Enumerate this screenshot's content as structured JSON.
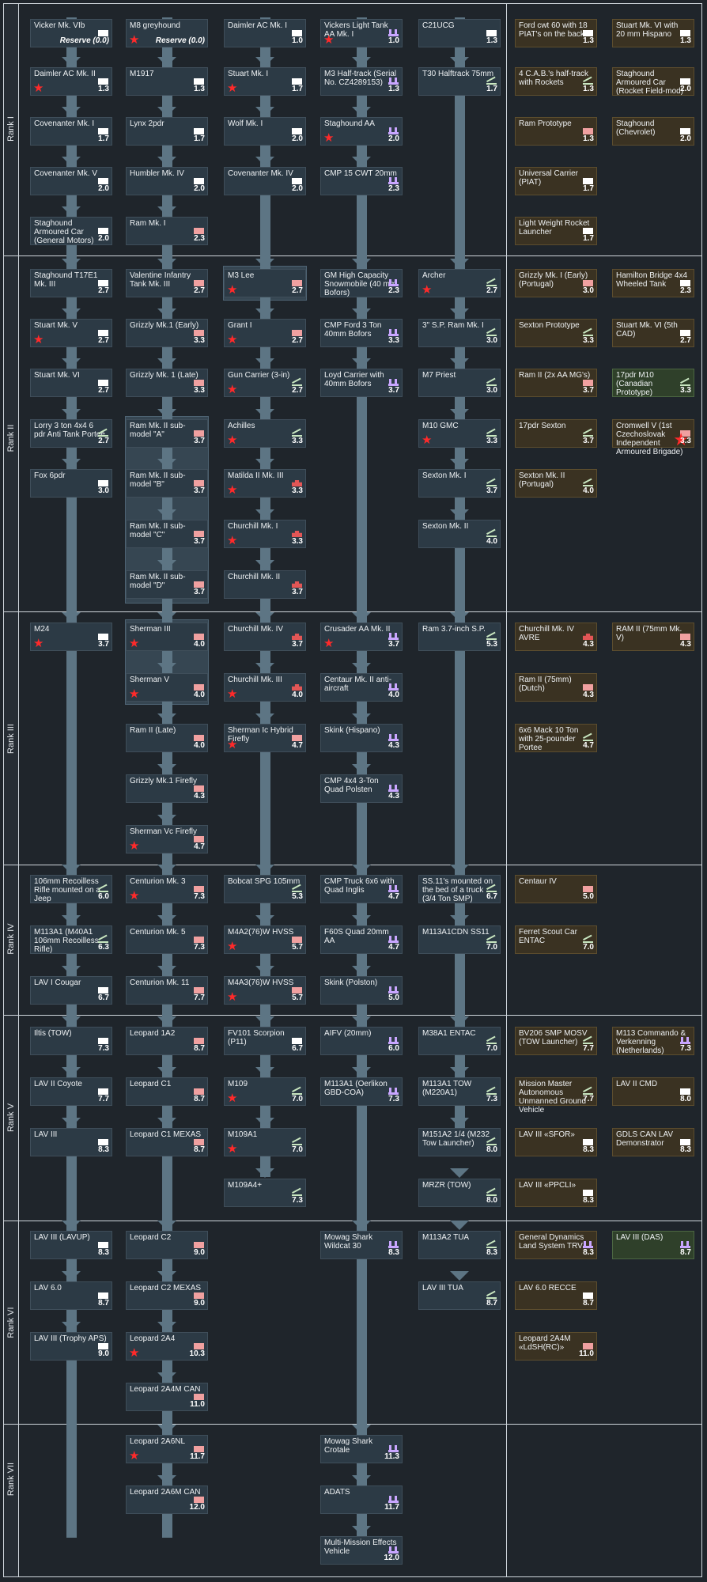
{
  "ranks": [
    {
      "label": "Rank I"
    },
    {
      "label": "Rank II"
    },
    {
      "label": "Rank III"
    },
    {
      "label": "Rank IV"
    },
    {
      "label": "Rank V"
    },
    {
      "label": "Rank VI"
    },
    {
      "label": "Rank VII"
    }
  ],
  "icon_colors": {
    "light": "#ffffff",
    "medium": "#f0a0a0",
    "heavy": "#e25656",
    "spg": "#c8e6c0",
    "aa": "#c9a6ff"
  },
  "vehicles": [
    {
      "name": "Vicker Mk. VIb",
      "br": "Reserve (0.0)",
      "icon": "light",
      "star": false,
      "type": "tech"
    },
    {
      "name": "M8 greyhound",
      "br": "Reserve (0.0)",
      "icon": "",
      "star": true,
      "type": "tech"
    },
    {
      "name": "Daimler AC Mk. I",
      "br": "1.0",
      "icon": "light",
      "star": false,
      "type": "tech"
    },
    {
      "name": "Vickers Light Tank AA Mk. I",
      "br": "1.0",
      "icon": "aa",
      "star": true,
      "type": "tech"
    },
    {
      "name": "C21UCG",
      "br": "1.3",
      "icon": "light",
      "star": false,
      "type": "tech"
    },
    {
      "name": "Ford cwt 60 with 18 PIAT's on the back",
      "br": "1.3",
      "icon": "light",
      "star": false,
      "type": "prem"
    },
    {
      "name": "Stuart Mk. VI with 20 mm Hispano",
      "br": "1.3",
      "icon": "light",
      "star": false,
      "type": "prem"
    },
    {
      "name": "Daimler AC Mk. II",
      "br": "1.3",
      "icon": "light",
      "star": true,
      "type": "tech"
    },
    {
      "name": "M1917",
      "br": "1.3",
      "icon": "light",
      "star": false,
      "type": "tech"
    },
    {
      "name": "Stuart Mk. I",
      "br": "1.7",
      "icon": "light",
      "star": true,
      "type": "tech"
    },
    {
      "name": "M3 Half-track (Serial No. CZ4289153)",
      "br": "1.3",
      "icon": "aa",
      "star": false,
      "type": "tech"
    },
    {
      "name": "T30 Halftrack 75mm",
      "br": "1.7",
      "icon": "spg",
      "star": false,
      "type": "tech"
    },
    {
      "name": "4 C.A.B.'s half-track with Rockets",
      "br": "1.3",
      "icon": "spg",
      "star": false,
      "type": "prem"
    },
    {
      "name": "Staghound Armoured Car (Rocket Field-mod)",
      "br": "2.0",
      "icon": "light",
      "star": false,
      "type": "prem"
    },
    {
      "name": "Covenanter Mk. I",
      "br": "1.7",
      "icon": "light",
      "star": false,
      "type": "tech"
    },
    {
      "name": "Lynx 2pdr",
      "br": "1.7",
      "icon": "light",
      "star": false,
      "type": "tech"
    },
    {
      "name": "Wolf Mk. I",
      "br": "2.0",
      "icon": "light",
      "star": false,
      "type": "tech"
    },
    {
      "name": "Staghound AA",
      "br": "2.0",
      "icon": "aa",
      "star": true,
      "type": "tech"
    },
    {
      "name": "Ram Prototype",
      "br": "1.3",
      "icon": "medium",
      "star": false,
      "type": "prem"
    },
    {
      "name": "Staghound (Chevrolet)",
      "br": "2.0",
      "icon": "light",
      "star": false,
      "type": "prem"
    },
    {
      "name": "Covenanter Mk. V",
      "br": "2.0",
      "icon": "light",
      "star": false,
      "type": "tech"
    },
    {
      "name": "Humbler Mk. IV",
      "br": "2.0",
      "icon": "light",
      "star": false,
      "type": "tech"
    },
    {
      "name": "Covenanter Mk. IV",
      "br": "2.0",
      "icon": "light",
      "star": false,
      "type": "tech"
    },
    {
      "name": "CMP 15 CWT 20mm",
      "br": "2.3",
      "icon": "aa",
      "star": false,
      "type": "tech"
    },
    {
      "name": "Universal Carrier (PIAT)",
      "br": "1.7",
      "icon": "light",
      "star": false,
      "type": "prem"
    },
    {
      "name": "Staghound Armoured Car (General Motors)",
      "br": "2.0",
      "icon": "light",
      "star": false,
      "type": "tech"
    },
    {
      "name": "Ram Mk. I",
      "br": "2.3",
      "icon": "medium",
      "star": false,
      "type": "tech"
    },
    {
      "name": "Light Weight Rocket Launcher",
      "br": "1.7",
      "icon": "light",
      "star": false,
      "type": "prem"
    },
    {
      "name": "Staghound T17E1 Mk. III",
      "br": "2.7",
      "icon": "light",
      "star": false,
      "type": "tech"
    },
    {
      "name": "Valentine Infantry Tank Mk. III",
      "br": "2.7",
      "icon": "medium",
      "star": false,
      "type": "tech"
    },
    {
      "name": "M3 Lee",
      "br": "2.7",
      "icon": "medium",
      "star": true,
      "type": "tech"
    },
    {
      "name": "GM High Capacity Snowmobile (40 mm Bofors)",
      "br": "2.3",
      "icon": "aa",
      "star": false,
      "type": "tech"
    },
    {
      "name": "Archer",
      "br": "2.7",
      "icon": "spg",
      "star": true,
      "type": "tech"
    },
    {
      "name": "Grizzly Mk. I (Early) (Portugal)",
      "br": "3.0",
      "icon": "medium",
      "star": false,
      "type": "prem"
    },
    {
      "name": "Hamilton Bridge 4x4 Wheeled Tank",
      "br": "2.3",
      "icon": "light",
      "star": false,
      "type": "prem"
    },
    {
      "name": "Stuart Mk. V",
      "br": "2.7",
      "icon": "light",
      "star": true,
      "type": "tech"
    },
    {
      "name": "Grizzly Mk.1 (Early)",
      "br": "3.3",
      "icon": "medium",
      "star": false,
      "type": "tech"
    },
    {
      "name": "Grant I",
      "br": "2.7",
      "icon": "medium",
      "star": true,
      "type": "tech"
    },
    {
      "name": "CMP Ford 3 Ton 40mm Bofors",
      "br": "3.3",
      "icon": "aa",
      "star": false,
      "type": "tech"
    },
    {
      "name": "3\" S.P. Ram Mk. I",
      "br": "3.0",
      "icon": "spg",
      "star": false,
      "type": "tech"
    },
    {
      "name": "Sexton Prototype",
      "br": "3.3",
      "icon": "spg",
      "star": false,
      "type": "prem"
    },
    {
      "name": "Stuart Mk. VI (5th CAD)",
      "br": "2.7",
      "icon": "light",
      "star": false,
      "type": "prem"
    },
    {
      "name": "Stuart Mk. VI",
      "br": "2.7",
      "icon": "light",
      "star": false,
      "type": "tech"
    },
    {
      "name": "Grizzly Mk. 1 (Late)",
      "br": "3.3",
      "icon": "medium",
      "star": false,
      "type": "tech"
    },
    {
      "name": "Gun Carrier (3-in)",
      "br": "2.7",
      "icon": "spg",
      "star": true,
      "type": "tech"
    },
    {
      "name": "Loyd Carrier with 40mm Bofors",
      "br": "3.7",
      "icon": "aa",
      "star": false,
      "type": "tech"
    },
    {
      "name": "M7 Priest",
      "br": "3.0",
      "icon": "spg",
      "star": false,
      "type": "tech"
    },
    {
      "name": "Ram II (2x AA MG's)",
      "br": "3.7",
      "icon": "medium",
      "star": false,
      "type": "prem"
    },
    {
      "name": "17pdr M10 (Canadian Prototype)",
      "br": "3.3",
      "icon": "spg",
      "star": false,
      "type": "squad"
    },
    {
      "name": "Lorry 3 ton 4x4 6 pdr Anti Tank Portee",
      "br": "2.7",
      "icon": "spg",
      "star": false,
      "type": "tech"
    },
    {
      "name": "Ram Mk. II sub-model \"A\"",
      "br": "3.7",
      "icon": "medium",
      "star": false,
      "type": "tech"
    },
    {
      "name": "Achilles",
      "br": "3.3",
      "icon": "spg",
      "star": true,
      "type": "tech"
    },
    {
      "name": "M10 GMC",
      "br": "3.3",
      "icon": "spg",
      "star": true,
      "type": "tech"
    },
    {
      "name": "17pdr Sexton",
      "br": "3.7",
      "icon": "spg",
      "star": false,
      "type": "prem"
    },
    {
      "name": "Cromwell V (1st Czechoslovak Independent Armoured Brigade)",
      "br": "3.3",
      "icon": "medium",
      "star": true,
      "type": "prem"
    },
    {
      "name": "Fox 6pdr",
      "br": "3.0",
      "icon": "light",
      "star": false,
      "type": "tech"
    },
    {
      "name": "Ram Mk. II sub-model \"B\"",
      "br": "3.7",
      "icon": "medium",
      "star": false,
      "type": "tech"
    },
    {
      "name": "Matilda II Mk. III",
      "br": "3.3",
      "icon": "heavy",
      "star": true,
      "type": "tech"
    },
    {
      "name": "Sexton Mk. I",
      "br": "3.7",
      "icon": "spg",
      "star": false,
      "type": "tech"
    },
    {
      "name": "Sexton Mk. II (Portugal)",
      "br": "4.0",
      "icon": "spg",
      "star": false,
      "type": "prem"
    },
    {
      "name": "Ram Mk. II sub-model \"C\"",
      "br": "3.7",
      "icon": "medium",
      "star": false,
      "type": "tech"
    },
    {
      "name": "Churchill Mk. I",
      "br": "3.3",
      "icon": "heavy",
      "star": true,
      "type": "tech"
    },
    {
      "name": "Sexton Mk. II",
      "br": "4.0",
      "icon": "spg",
      "star": false,
      "type": "tech"
    },
    {
      "name": "Ram Mk. II sub-model \"D\"",
      "br": "3.7",
      "icon": "medium",
      "star": false,
      "type": "tech"
    },
    {
      "name": "Churchill Mk. II",
      "br": "3.7",
      "icon": "heavy",
      "star": false,
      "type": "tech"
    },
    {
      "name": "M24",
      "br": "3.7",
      "icon": "light",
      "star": true,
      "type": "tech"
    },
    {
      "name": "Sherman III",
      "br": "4.0",
      "icon": "medium",
      "star": true,
      "type": "tech"
    },
    {
      "name": "Churchill Mk. IV",
      "br": "3.7",
      "icon": "heavy",
      "star": false,
      "type": "tech"
    },
    {
      "name": "Crusader AA Mk. II",
      "br": "3.7",
      "icon": "aa",
      "star": true,
      "type": "tech"
    },
    {
      "name": "Ram 3.7-inch S.P.",
      "br": "5.3",
      "icon": "spg",
      "star": false,
      "type": "tech"
    },
    {
      "name": "Churchill Mk. IV AVRE",
      "br": "4.3",
      "icon": "heavy",
      "star": false,
      "type": "prem"
    },
    {
      "name": "RAM II (75mm Mk. V)",
      "br": "4.3",
      "icon": "medium",
      "star": false,
      "type": "prem"
    },
    {
      "name": "Sherman V",
      "br": "4.0",
      "icon": "medium",
      "star": true,
      "type": "tech"
    },
    {
      "name": "Churchill Mk. III",
      "br": "4.0",
      "icon": "heavy",
      "star": true,
      "type": "tech"
    },
    {
      "name": "Centaur Mk. II anti-aircraft",
      "br": "4.0",
      "icon": "aa",
      "star": false,
      "type": "tech"
    },
    {
      "name": "Ram II (75mm) (Dutch)",
      "br": "4.3",
      "icon": "medium",
      "star": false,
      "type": "prem"
    },
    {
      "name": "Ram II (Late)",
      "br": "4.0",
      "icon": "medium",
      "star": false,
      "type": "tech"
    },
    {
      "name": "Sherman Ic Hybrid Firefly",
      "br": "4.7",
      "icon": "medium",
      "star": true,
      "type": "tech"
    },
    {
      "name": "Skink (Hispano)",
      "br": "4.3",
      "icon": "aa",
      "star": false,
      "type": "tech"
    },
    {
      "name": "6x6 Mack 10 Ton with 25-pounder Portee",
      "br": "4.7",
      "icon": "spg",
      "star": false,
      "type": "prem"
    },
    {
      "name": "Grizzly Mk.1 Firefly",
      "br": "4.3",
      "icon": "medium",
      "star": false,
      "type": "tech"
    },
    {
      "name": "CMP 4x4 3-Ton Quad Polsten",
      "br": "4.3",
      "icon": "aa",
      "star": false,
      "type": "tech"
    },
    {
      "name": "Sherman Vc Firefly",
      "br": "4.7",
      "icon": "medium",
      "star": true,
      "type": "tech"
    },
    {
      "name": "106mm Recoilless Rifle mounted on a Jeep",
      "br": "6.0",
      "icon": "spg",
      "star": false,
      "type": "tech"
    },
    {
      "name": "Centurion Mk. 3",
      "br": "7.3",
      "icon": "medium",
      "star": true,
      "type": "tech"
    },
    {
      "name": "Bobcat SPG 105mm",
      "br": "5.3",
      "icon": "spg",
      "star": false,
      "type": "tech"
    },
    {
      "name": "CMP Truck 6x6 with Quad Inglis",
      "br": "4.7",
      "icon": "aa",
      "star": false,
      "type": "tech"
    },
    {
      "name": "SS.11's mounted on the bed of a truck (3/4 Ton SMP)",
      "br": "6.7",
      "icon": "spg",
      "star": false,
      "type": "tech"
    },
    {
      "name": "Centaur IV",
      "br": "5.0",
      "icon": "medium",
      "star": false,
      "type": "prem"
    },
    {
      "name": "M113A1 (M40A1 106mm Recoilless Rifle)",
      "br": "6.3",
      "icon": "spg",
      "star": false,
      "type": "tech"
    },
    {
      "name": "Centurion Mk. 5",
      "br": "7.3",
      "icon": "medium",
      "star": false,
      "type": "tech"
    },
    {
      "name": "M4A2(76)W HVSS",
      "br": "5.7",
      "icon": "medium",
      "star": true,
      "type": "tech"
    },
    {
      "name": "F60S Quad 20mm AA",
      "br": "4.7",
      "icon": "aa",
      "star": false,
      "type": "tech"
    },
    {
      "name": "M113A1CDN SS11",
      "br": "7.0",
      "icon": "spg",
      "star": false,
      "type": "tech"
    },
    {
      "name": "Ferret Scout Car ENTAC",
      "br": "7.0",
      "icon": "spg",
      "star": false,
      "type": "prem"
    },
    {
      "name": "LAV I Cougar",
      "br": "6.7",
      "icon": "light",
      "star": false,
      "type": "tech"
    },
    {
      "name": "Centurion Mk. 11",
      "br": "7.7",
      "icon": "medium",
      "star": false,
      "type": "tech"
    },
    {
      "name": "M4A3(76)W HVSS",
      "br": "5.7",
      "icon": "medium",
      "star": true,
      "type": "tech"
    },
    {
      "name": "Skink (Polston)",
      "br": "5.0",
      "icon": "aa",
      "star": false,
      "type": "tech"
    },
    {
      "name": "Iltis (TOW)",
      "br": "7.3",
      "icon": "light",
      "star": false,
      "type": "tech"
    },
    {
      "name": "Leopard 1A2",
      "br": "8.7",
      "icon": "medium",
      "star": false,
      "type": "tech"
    },
    {
      "name": "FV101 Scorpion (P11)",
      "br": "6.7",
      "icon": "light",
      "star": false,
      "type": "tech"
    },
    {
      "name": "AIFV (20mm)",
      "br": "6.0",
      "icon": "aa",
      "star": false,
      "type": "tech"
    },
    {
      "name": "M38A1 ENTAC",
      "br": "7.0",
      "icon": "spg",
      "star": false,
      "type": "tech"
    },
    {
      "name": "BV206 SMP MOSV (TOW Launcher)",
      "br": "7.7",
      "icon": "spg",
      "star": false,
      "type": "prem"
    },
    {
      "name": "M113 Commando & Verkenning (Netherlands)",
      "br": "7.3",
      "icon": "aa",
      "star": false,
      "type": "prem"
    },
    {
      "name": "LAV II Coyote",
      "br": "7.7",
      "icon": "light",
      "star": false,
      "type": "tech"
    },
    {
      "name": "Leopard C1",
      "br": "8.7",
      "icon": "medium",
      "star": false,
      "type": "tech"
    },
    {
      "name": "M109",
      "br": "7.0",
      "icon": "spg",
      "star": true,
      "type": "tech"
    },
    {
      "name": "M113A1 (Oerlikon GBD-COA)",
      "br": "7.3",
      "icon": "aa",
      "star": false,
      "type": "tech"
    },
    {
      "name": "M113A1 TOW (M220A1)",
      "br": "7.3",
      "icon": "spg",
      "star": false,
      "type": "tech"
    },
    {
      "name": "Mission Master Autonomous Unmanned Ground Vehicle",
      "br": "7.7",
      "icon": "spg",
      "star": false,
      "type": "prem"
    },
    {
      "name": "LAV II CMD",
      "br": "8.0",
      "icon": "light",
      "star": false,
      "type": "prem"
    },
    {
      "name": "LAV III",
      "br": "8.3",
      "icon": "light",
      "star": false,
      "type": "tech"
    },
    {
      "name": "Leopard C1 MEXAS",
      "br": "8.7",
      "icon": "medium",
      "star": false,
      "type": "tech"
    },
    {
      "name": "M109A1",
      "br": "7.0",
      "icon": "spg",
      "star": true,
      "type": "tech"
    },
    {
      "name": "M151A2 1/4 (M232 Tow Launcher)",
      "br": "8.0",
      "icon": "spg",
      "star": false,
      "type": "tech"
    },
    {
      "name": "LAV III «SFOR»",
      "br": "8.3",
      "icon": "light",
      "star": false,
      "type": "prem"
    },
    {
      "name": "GDLS CAN LAV Demonstrator",
      "br": "8.3",
      "icon": "light",
      "star": false,
      "type": "prem"
    },
    {
      "name": "M109A4+",
      "br": "7.3",
      "icon": "spg",
      "star": false,
      "type": "tech"
    },
    {
      "name": "MRZR (TOW)",
      "br": "8.0",
      "icon": "spg",
      "star": false,
      "type": "tech"
    },
    {
      "name": "LAV III «PPCLI»",
      "br": "8.3",
      "icon": "light",
      "star": false,
      "type": "prem"
    },
    {
      "name": "LAV III (LAVUP)",
      "br": "8.3",
      "icon": "light",
      "star": false,
      "type": "tech"
    },
    {
      "name": "Leopard C2",
      "br": "9.0",
      "icon": "medium",
      "star": false,
      "type": "tech"
    },
    {
      "name": "Mowag Shark Wildcat 30",
      "br": "8.3",
      "icon": "aa",
      "star": false,
      "type": "tech"
    },
    {
      "name": "M113A2 TUA",
      "br": "8.3",
      "icon": "spg",
      "star": false,
      "type": "tech"
    },
    {
      "name": "General Dynamics Land System TRV",
      "br": "8.3",
      "icon": "aa",
      "star": false,
      "type": "prem"
    },
    {
      "name": "LAV III (DAS)",
      "br": "8.7",
      "icon": "aa",
      "star": false,
      "type": "squad"
    },
    {
      "name": "LAV 6.0",
      "br": "8.7",
      "icon": "light",
      "star": false,
      "type": "tech"
    },
    {
      "name": "Leopard C2 MEXAS",
      "br": "9.0",
      "icon": "medium",
      "star": false,
      "type": "tech"
    },
    {
      "name": "LAV III TUA",
      "br": "8.7",
      "icon": "spg",
      "star": false,
      "type": "tech"
    },
    {
      "name": "LAV 6.0 RECCE",
      "br": "8.7",
      "icon": "light",
      "star": false,
      "type": "prem"
    },
    {
      "name": "LAV III (Trophy APS)",
      "br": "9.0",
      "icon": "light",
      "star": false,
      "type": "tech"
    },
    {
      "name": "Leopard 2A4",
      "br": "10.3",
      "icon": "medium",
      "star": true,
      "type": "tech"
    },
    {
      "name": "Leopard 2A4M «LdSH(RC)»",
      "br": "11.0",
      "icon": "medium",
      "star": false,
      "type": "prem"
    },
    {
      "name": "Leopard 2A4M CAN",
      "br": "11.0",
      "icon": "medium",
      "star": false,
      "type": "tech"
    },
    {
      "name": "Leopard 2A6NL",
      "br": "11.7",
      "icon": "medium",
      "star": true,
      "type": "tech"
    },
    {
      "name": "Mowag Shark Crotale",
      "br": "11.3",
      "icon": "aa",
      "star": false,
      "type": "tech"
    },
    {
      "name": "Leopard 2A6M CAN",
      "br": "12.0",
      "icon": "medium",
      "star": false,
      "type": "tech"
    },
    {
      "name": "ADATS",
      "br": "11.7",
      "icon": "aa",
      "star": false,
      "type": "tech"
    },
    {
      "name": "Multi-Mission Effects Vehicle",
      "br": "12.0",
      "icon": "aa",
      "star": false,
      "type": "tech"
    }
  ]
}
